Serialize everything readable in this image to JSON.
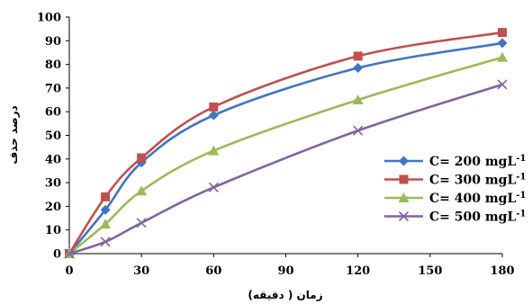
{
  "chart_data": {
    "type": "line",
    "title": "",
    "xlabel": "زمان ( دقیقه)",
    "ylabel": "درصد حذف",
    "xlim": [
      0,
      180
    ],
    "ylim": [
      0,
      100
    ],
    "x_ticks": [
      "0",
      "30",
      "60",
      "90",
      "120",
      "150",
      "180"
    ],
    "y_ticks": [
      "0",
      "10",
      "20",
      "30",
      "40",
      "50",
      "60",
      "70",
      "80",
      "90",
      "100"
    ],
    "x": [
      0,
      15,
      30,
      60,
      120,
      180
    ],
    "grid": false,
    "legend_position": "right",
    "series": [
      {
        "name": "C= 200 mgL",
        "unit_exponent": "-1",
        "color": "#4472c4",
        "marker": "diamond",
        "values": [
          0,
          18.5,
          38.5,
          58.5,
          78.5,
          89
        ]
      },
      {
        "name": "C= 300 mgL",
        "unit_exponent": "-1",
        "color": "#c0504d",
        "marker": "square",
        "values": [
          0,
          24,
          40.5,
          62,
          83.5,
          93.5
        ]
      },
      {
        "name": "C= 400 mgL",
        "unit_exponent": "-1",
        "color": "#9bbb59",
        "marker": "triangle",
        "values": [
          0,
          12.5,
          26.5,
          43.5,
          65,
          83
        ]
      },
      {
        "name": "C= 500 mgL",
        "unit_exponent": "-1",
        "color": "#8064a2",
        "marker": "x",
        "values": [
          0,
          5,
          13,
          28,
          52,
          71.5
        ]
      }
    ]
  }
}
